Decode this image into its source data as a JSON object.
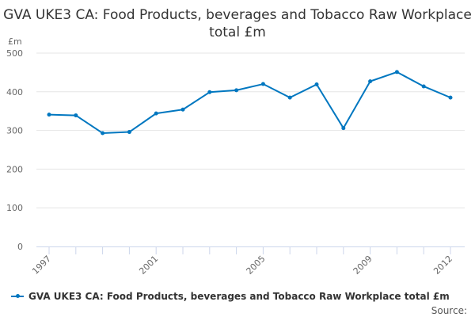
{
  "chart_data": {
    "type": "line",
    "title": "GVA UKE3 CA: Food Products, beverages and Tobacco Raw Workplace total £m",
    "ylabel": "£m",
    "xlabel": "",
    "ylim": [
      0,
      500
    ],
    "yticks": [
      0,
      100,
      200,
      300,
      400,
      500
    ],
    "x": [
      1997,
      1998,
      1999,
      2000,
      2001,
      2002,
      2003,
      2004,
      2005,
      2006,
      2007,
      2008,
      2009,
      2010,
      2011,
      2012
    ],
    "xtick_labels": [
      "1997",
      "2001",
      "2005",
      "2009",
      "2012"
    ],
    "grid": true,
    "legend_position": "bottom",
    "series": [
      {
        "name": "GVA UKE3 CA: Food Products, beverages and Tobacco Raw Workplace total £m",
        "color": "#0077c0",
        "values": [
          341,
          339,
          293,
          296,
          344,
          354,
          399,
          404,
          420,
          385,
          419,
          306,
          427,
          451,
          414,
          385
        ]
      }
    ]
  },
  "source_label": "Source:"
}
